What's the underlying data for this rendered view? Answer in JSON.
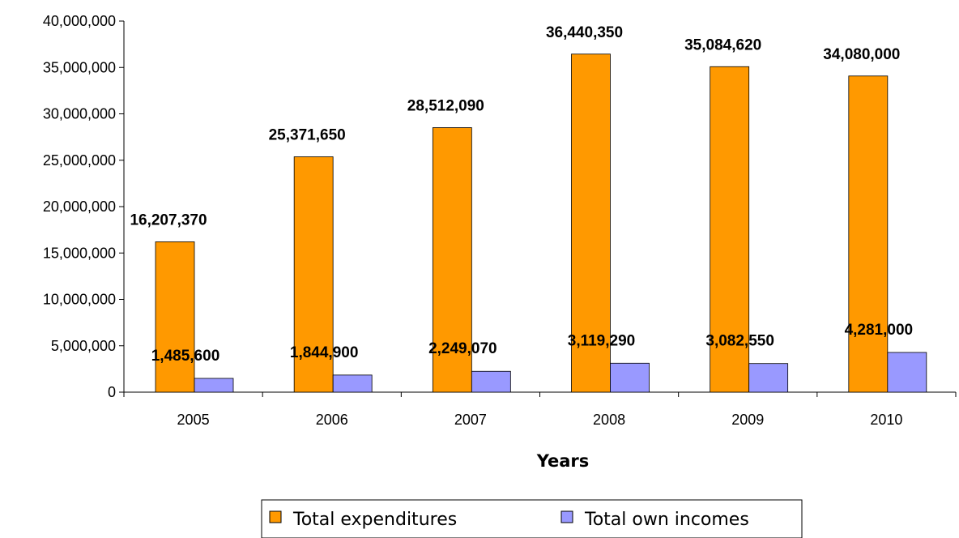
{
  "chart_data": {
    "type": "bar",
    "categories": [
      "2005",
      "2006",
      "2007",
      "2008",
      "2009",
      "2010"
    ],
    "series": [
      {
        "name": "Total expenditures",
        "color": "#FF9900",
        "values": [
          16207370,
          25371650,
          28512090,
          36440350,
          35084620,
          34080000
        ],
        "labels": [
          "16,207,370",
          "25,371,650",
          "28,512,090",
          "36,440,350",
          "35,084,620",
          "34,080,000"
        ]
      },
      {
        "name": "Total own incomes",
        "color": "#9999FF",
        "values": [
          1485600,
          1844900,
          2249070,
          3119290,
          3082550,
          4281000
        ],
        "labels": [
          "1,485,600",
          "1,844,900",
          "2,249,070",
          "3,119,290",
          "3,082,550",
          "4,281,000"
        ]
      }
    ],
    "xlabel": "Years",
    "ylabel": "",
    "ylim": [
      0,
      40000000
    ],
    "yticks": [
      0,
      5000000,
      10000000,
      15000000,
      20000000,
      25000000,
      30000000,
      35000000,
      40000000
    ],
    "ytick_labels": [
      "0",
      "5,000,000",
      "10,000,000",
      "15,000,000",
      "20,000,000",
      "25,000,000",
      "30,000,000",
      "35,000,000",
      "40,000,000"
    ],
    "grid": false,
    "legend_position": "bottom"
  }
}
